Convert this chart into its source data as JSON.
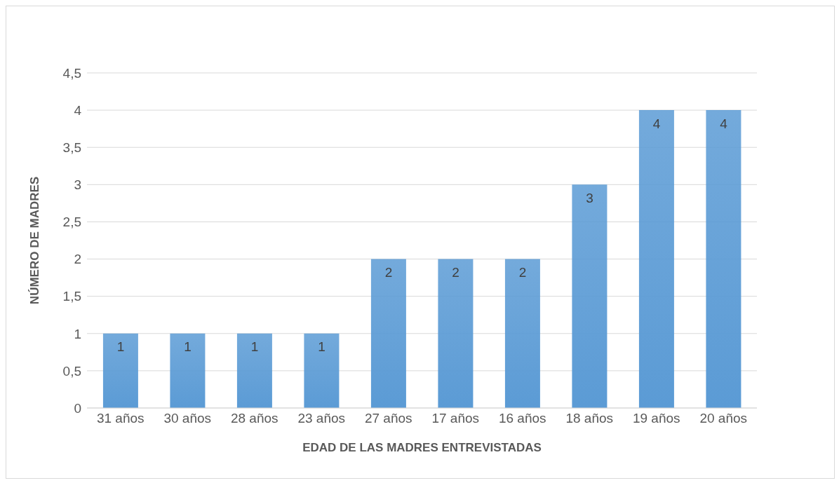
{
  "chart_data": {
    "type": "bar",
    "xlabel": "EDAD DE LAS MADRES ENTREVISTADAS",
    "ylabel": "NÚMERO DE MADRES",
    "categories": [
      "31 años",
      "30 años",
      "28 años",
      "23 años",
      "27 años",
      "17 años",
      "16 años",
      "18 años",
      "19 años",
      "20 años"
    ],
    "values": [
      1,
      1,
      1,
      1,
      2,
      2,
      2,
      3,
      4,
      4
    ],
    "color": "#5b9bd5",
    "ylim": [
      0,
      4.5
    ],
    "yticks": [
      0,
      {
        "value": 0.5,
        "label": "0,5"
      },
      1,
      {
        "value": 1.5,
        "label": "1,5"
      },
      2,
      {
        "value": 2.5,
        "label": "2,5"
      },
      3,
      {
        "value": 3.5,
        "label": "3,5"
      },
      4,
      {
        "value": 4.5,
        "label": "4,5"
      }
    ],
    "grid": "y",
    "data_labels": true,
    "legend": false
  }
}
